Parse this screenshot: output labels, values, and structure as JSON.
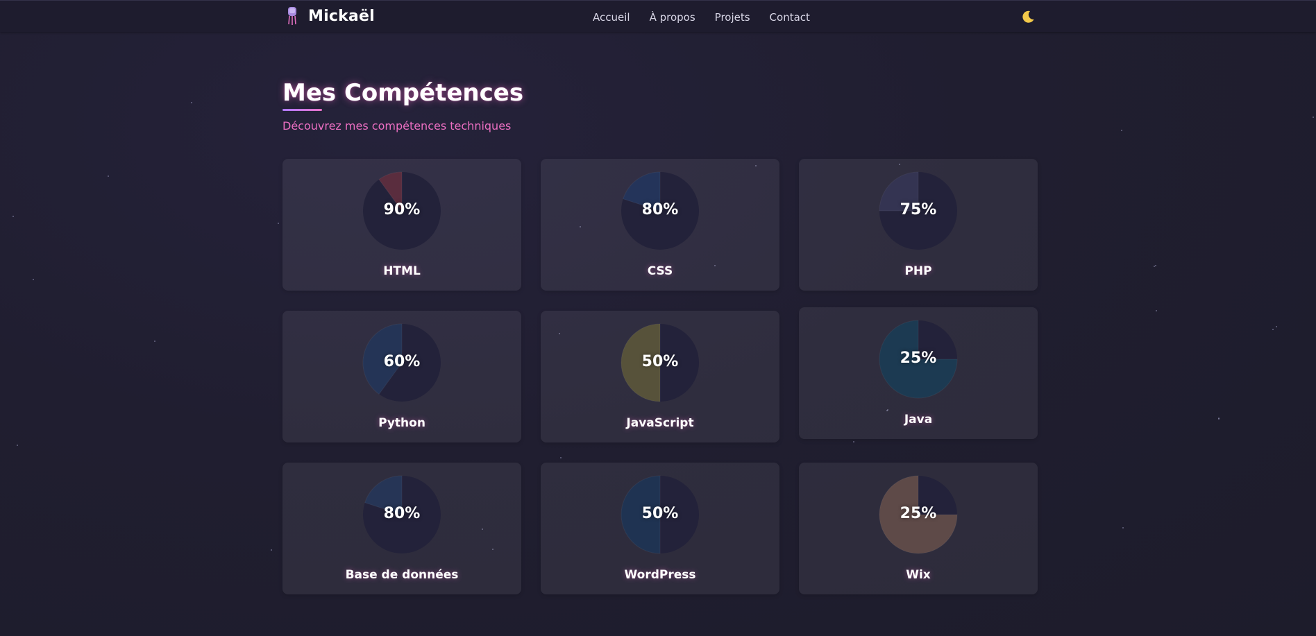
{
  "brand": {
    "name": "Mickaël",
    "logo_icon": "jellyfish-icon"
  },
  "nav": {
    "links": [
      "Accueil",
      "À propos",
      "Projets",
      "Contact"
    ],
    "theme_toggle_icon": "moon-icon"
  },
  "section": {
    "title": "Mes Compétences",
    "subtitle": "Découvrez mes compétences techniques"
  },
  "colors": {
    "background": "#201e30",
    "accent_pink": "#ec6fc2",
    "accent_purple": "#b07bff",
    "pie_base": "#23223a"
  },
  "skills": [
    {
      "name": "HTML",
      "percent_label": "90%",
      "slice_fraction": 0.1,
      "slice_color": "#5a2d3e"
    },
    {
      "name": "CSS",
      "percent_label": "80%",
      "slice_fraction": 0.2,
      "slice_color": "#24345a"
    },
    {
      "name": "PHP",
      "percent_label": "75%",
      "slice_fraction": 0.25,
      "slice_color": "#343452"
    },
    {
      "name": "Python",
      "percent_label": "60%",
      "slice_fraction": 0.4,
      "slice_color": "#243456"
    },
    {
      "name": "JavaScript",
      "percent_label": "50%",
      "slice_fraction": 0.5,
      "slice_color": "#57523a"
    },
    {
      "name": "Java",
      "percent_label": "25%",
      "slice_fraction": 0.75,
      "slice_color": "#1c3a52"
    },
    {
      "name": "Base de données",
      "percent_label": "80%",
      "slice_fraction": 0.2,
      "slice_color": "#263556"
    },
    {
      "name": "WordPress",
      "percent_label": "50%",
      "slice_fraction": 0.5,
      "slice_color": "#1f3352"
    },
    {
      "name": "Wix",
      "percent_label": "25%",
      "slice_fraction": 0.75,
      "slice_color": "#5e4a48"
    }
  ]
}
